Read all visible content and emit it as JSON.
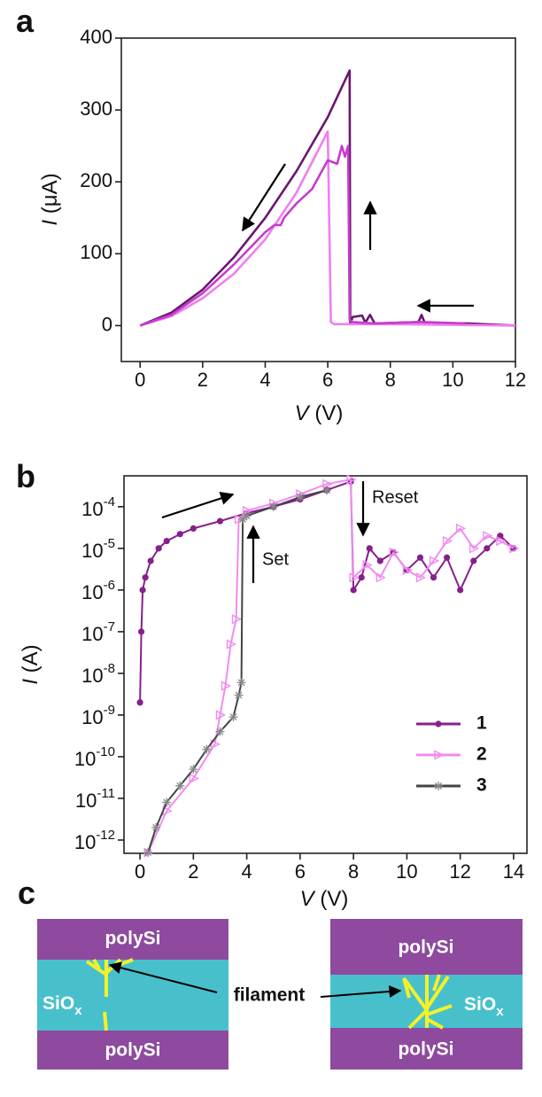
{
  "chart_data": [
    {
      "type": "line",
      "panel_label": "a",
      "xlabel": {
        "symbol": "V",
        "unit": " (V)"
      },
      "ylabel": {
        "symbol": "I",
        "unit": " (μA)"
      },
      "xlim": [
        -0.6,
        12
      ],
      "ylim": [
        -50,
        400
      ],
      "xticks": [
        0,
        2,
        4,
        6,
        8,
        10,
        12
      ],
      "yticks": [
        0,
        100,
        200,
        300,
        400
      ],
      "ylog": false,
      "grid": false,
      "series": [
        {
          "color": "#6b1670",
          "x": [
            12,
            10.5,
            9.1,
            9,
            8.9,
            7.5,
            7.35,
            7.2,
            7.1,
            6.8,
            6.72,
            6.7,
            6,
            5,
            4,
            3,
            2,
            1,
            0
          ],
          "values": [
            0,
            3,
            4,
            15,
            5,
            3,
            15,
            4,
            14,
            12,
            3,
            355,
            290,
            215,
            150,
            95,
            50,
            18,
            0
          ]
        },
        {
          "color": "#f07ef0",
          "x": [
            12,
            10,
            8,
            6.2,
            6.1,
            6.0,
            5,
            4,
            3,
            2,
            1,
            0
          ],
          "values": [
            0,
            1,
            2,
            2,
            5,
            270,
            185,
            120,
            72,
            38,
            13,
            0
          ]
        },
        {
          "color": "#c63ccc",
          "x": [
            10.4,
            9,
            7.5,
            6.8,
            6.7,
            6.65,
            6.55,
            6.45,
            6.3,
            6,
            5.5,
            5,
            4.8,
            4.6,
            4.5,
            4.3,
            4,
            3,
            2,
            1,
            0
          ],
          "values": [
            3,
            5,
            3,
            5,
            8,
            250,
            235,
            250,
            225,
            230,
            190,
            170,
            160,
            150,
            140,
            140,
            130,
            85,
            45,
            15,
            0
          ]
        }
      ]
    },
    {
      "type": "line",
      "panel_label": "b",
      "xlabel": {
        "symbol": "V",
        "unit": " (V)"
      },
      "ylabel": {
        "symbol": "I",
        "unit": " (A)"
      },
      "xlim": [
        -0.6,
        14.5
      ],
      "ylim": [
        4.8e-13,
        0.00055
      ],
      "xticks": [
        0,
        2,
        4,
        6,
        8,
        10,
        12,
        14
      ],
      "yticks": [
        {
          "value": 0.0001,
          "label": "10-4"
        },
        {
          "value": 1e-05,
          "label": "10-5"
        },
        {
          "value": 1e-06,
          "label": "10-6"
        },
        {
          "value": 1e-07,
          "label": "10-7"
        },
        {
          "value": 1e-08,
          "label": "10-8"
        },
        {
          "value": 1e-09,
          "label": "10-9"
        },
        {
          "value": 1e-10,
          "label": "10-10"
        },
        {
          "value": 1e-11,
          "label": "10-11"
        },
        {
          "value": 1e-12,
          "label": "10-12"
        }
      ],
      "ylog": true,
      "grid": false,
      "legend": "lower right",
      "annotations": [
        "Reset",
        "Set"
      ],
      "series": [
        {
          "name": "1",
          "color": "#86208c",
          "marker": "circle",
          "x": [
            0,
            0.05,
            0.1,
            0.2,
            0.4,
            0.7,
            1,
            1.5,
            2,
            3,
            4,
            5,
            6,
            7,
            7.9,
            8.0,
            8.3,
            8.6,
            9,
            9.5,
            10,
            10.5,
            11,
            11.5,
            12,
            12.5,
            13,
            13.5,
            14
          ],
          "values": [
            2e-09,
            1e-07,
            1e-06,
            2e-06,
            5e-06,
            1e-05,
            1.5e-05,
            2.2e-05,
            3e-05,
            4.5e-05,
            7e-05,
            0.0001,
            0.00015,
            0.00025,
            0.0004,
            1e-06,
            2e-06,
            1e-05,
            5e-06,
            8e-06,
            3e-06,
            6e-06,
            2e-06,
            6e-06,
            1e-06,
            5e-06,
            1e-05,
            2e-05,
            1e-05
          ]
        },
        {
          "name": "2",
          "color": "#f08cf0",
          "marker": "triangle",
          "x": [
            0.3,
            1,
            2,
            2.8,
            3.0,
            3.2,
            3.4,
            3.6,
            3.7,
            4,
            5,
            6,
            7,
            7.9,
            8,
            8.5,
            9,
            9.5,
            10,
            10.5,
            11,
            11.5,
            12,
            12.5,
            13,
            13.5,
            14
          ],
          "values": [
            5e-13,
            5e-12,
            3e-11,
            2e-10,
            1e-09,
            5e-09,
            5e-08,
            2e-07,
            5e-05,
            8e-05,
            0.00012,
            0.0002,
            0.00035,
            0.00045,
            2e-06,
            4e-06,
            2e-06,
            8e-06,
            3e-06,
            2e-06,
            5e-06,
            1.5e-05,
            3e-05,
            1e-05,
            2e-05,
            1.5e-05,
            1e-05
          ]
        },
        {
          "name": "3",
          "color": "#444444",
          "marker": "star",
          "x": [
            0.3,
            0.6,
            1,
            1.5,
            2,
            2.5,
            3,
            3.5,
            3.7,
            3.8,
            3.85,
            4,
            5,
            6,
            7
          ],
          "values": [
            5e-13,
            2e-12,
            8e-12,
            2e-11,
            5e-11,
            1.5e-10,
            4e-10,
            9e-10,
            3e-09,
            6e-09,
            5e-05,
            6e-05,
            0.0001,
            0.00017,
            0.00025
          ]
        }
      ]
    }
  ],
  "diagram": {
    "panel_label": "c",
    "left": {
      "top": "polySi",
      "middle": "SiOx",
      "bottom": "polySi"
    },
    "right": {
      "top": "polySi",
      "middle": "SiOx",
      "bottom": "polySi"
    },
    "label": "filament"
  }
}
